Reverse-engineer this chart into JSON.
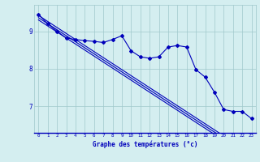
{
  "xlabel": "Graphe des températures (°c)",
  "bg_color": "#d4eef0",
  "plot_bg_color": "#d4eef0",
  "line_color": "#0000bb",
  "grid_color": "#a0c8cc",
  "axis_label_color": "#0000bb",
  "tick_color": "#0000bb",
  "border_color": "#0000bb",
  "xlim": [
    -0.5,
    23.5
  ],
  "ylim": [
    6.3,
    9.7
  ],
  "yticks": [
    7,
    8,
    9
  ],
  "xticks": [
    0,
    1,
    2,
    3,
    4,
    5,
    6,
    7,
    8,
    9,
    10,
    11,
    12,
    13,
    14,
    15,
    16,
    17,
    18,
    19,
    20,
    21,
    22,
    23
  ],
  "temp_data": [
    9.45,
    9.2,
    9.0,
    8.82,
    8.78,
    8.75,
    8.73,
    8.7,
    8.78,
    8.88,
    8.48,
    8.32,
    8.28,
    8.32,
    8.58,
    8.62,
    8.58,
    7.98,
    7.78,
    7.38,
    6.92,
    6.87,
    6.87,
    6.68
  ],
  "trend1": [
    9.42,
    9.26,
    9.1,
    8.94,
    8.78,
    8.62,
    8.46,
    8.3,
    8.14,
    7.98,
    7.82,
    7.66,
    7.5,
    7.34,
    7.18,
    7.02,
    6.86,
    6.7,
    6.54,
    6.38,
    6.22,
    6.06,
    5.9,
    5.74
  ],
  "trend2": [
    9.36,
    9.2,
    9.04,
    8.88,
    8.72,
    8.56,
    8.4,
    8.24,
    8.08,
    7.92,
    7.76,
    7.6,
    7.44,
    7.28,
    7.12,
    6.96,
    6.8,
    6.64,
    6.48,
    6.32,
    6.16,
    6.0,
    5.84,
    5.68
  ],
  "trend3": [
    9.3,
    9.14,
    8.98,
    8.82,
    8.66,
    8.5,
    8.34,
    8.18,
    8.02,
    7.86,
    7.7,
    7.54,
    7.38,
    7.22,
    7.06,
    6.9,
    6.74,
    6.58,
    6.42,
    6.26,
    6.1,
    5.94,
    5.78,
    5.62
  ]
}
